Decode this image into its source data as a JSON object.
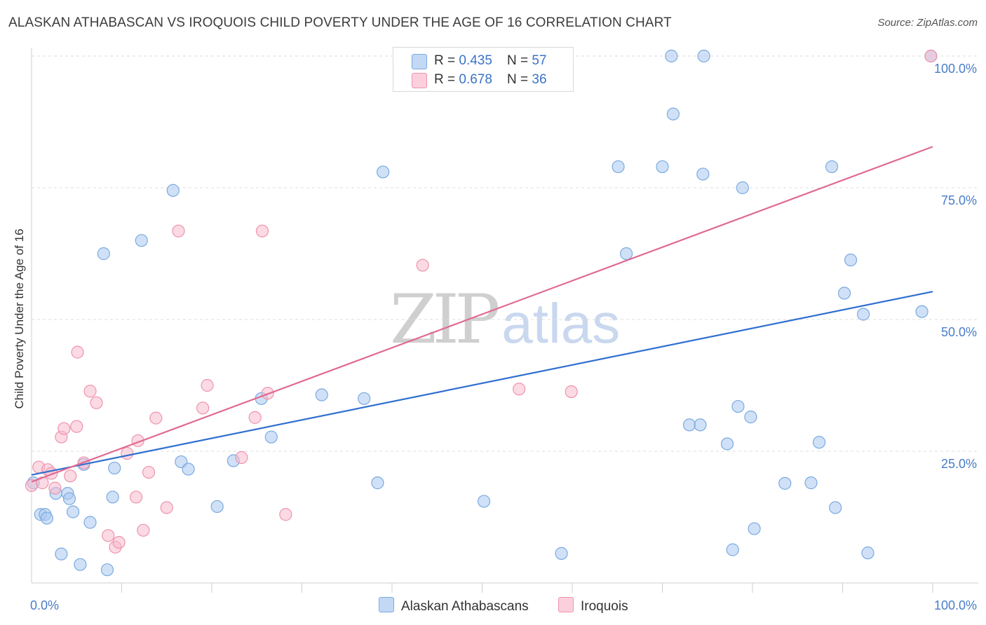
{
  "title": "ALASKAN ATHABASCAN VS IROQUOIS CHILD POVERTY UNDER THE AGE OF 16 CORRELATION CHART",
  "source": "Source: ZipAtlas.com",
  "watermark": {
    "zip": "ZIP",
    "atlas": "atlas"
  },
  "legend_top": {
    "rows": [
      {
        "r_label": "R = ",
        "r_value": "0.435",
        "n_label": "N = ",
        "n_value": "57",
        "color": "#aac8f0"
      },
      {
        "r_label": "R = ",
        "r_value": "0.678",
        "n_label": "N = ",
        "n_value": "36",
        "color": "#f7bccd"
      }
    ]
  },
  "legend_bottom": {
    "series": [
      {
        "name": "Alaskan Athabascans",
        "color": "#aac8f0"
      },
      {
        "name": "Iroquois",
        "color": "#f7bccd"
      }
    ]
  },
  "chart_data": {
    "type": "scatter",
    "title": "ALASKAN ATHABASCAN VS IROQUOIS CHILD POVERTY UNDER THE AGE OF 16 CORRELATION CHART",
    "xlabel": "",
    "ylabel": "Child Poverty Under the Age of 16",
    "xlim": [
      0,
      100
    ],
    "ylim": [
      0,
      100
    ],
    "x_tick_labels": [
      "0.0%",
      "100.0%"
    ],
    "y_ticks": [
      25,
      50,
      75,
      100
    ],
    "y_tick_labels": [
      "25.0%",
      "50.0%",
      "75.0%",
      "100.0%"
    ],
    "grid": true,
    "legend_placement": "top-center and bottom",
    "series": [
      {
        "name": "Alaskan Athabascans",
        "color": "#aac8f0",
        "edge": "#7aaae0",
        "line_color": "#2f6fd0",
        "R": 0.435,
        "N": 57,
        "trend": {
          "x": [
            0,
            100
          ],
          "y": [
            20.5,
            55.3
          ]
        },
        "points": [
          [
            0.2,
            19
          ],
          [
            1,
            13
          ],
          [
            1.5,
            13
          ],
          [
            1.7,
            12.3
          ],
          [
            2.7,
            17
          ],
          [
            3.3,
            5.5
          ],
          [
            4,
            17
          ],
          [
            4.2,
            16
          ],
          [
            4.6,
            13.5
          ],
          [
            5.4,
            3.5
          ],
          [
            5.8,
            22.5
          ],
          [
            6.5,
            11.5
          ],
          [
            8,
            62.5
          ],
          [
            8.4,
            2.5
          ],
          [
            9,
            16.3
          ],
          [
            9.2,
            21.8
          ],
          [
            12.2,
            65
          ],
          [
            15.7,
            74.5
          ],
          [
            16.6,
            23
          ],
          [
            17.4,
            21.6
          ],
          [
            20.6,
            14.5
          ],
          [
            22.4,
            23.2
          ],
          [
            25.5,
            35
          ],
          [
            26.6,
            27.7
          ],
          [
            32.2,
            35.7
          ],
          [
            36.9,
            35
          ],
          [
            38.4,
            19
          ],
          [
            39,
            78
          ],
          [
            50.2,
            15.5
          ],
          [
            58.8,
            5.6
          ],
          [
            65.1,
            79
          ],
          [
            66,
            62.5
          ],
          [
            70,
            79
          ],
          [
            71,
            100
          ],
          [
            71.2,
            89
          ],
          [
            73,
            30
          ],
          [
            74.2,
            30
          ],
          [
            74.5,
            77.6
          ],
          [
            74.6,
            100
          ],
          [
            77.2,
            26.4
          ],
          [
            77.8,
            6.3
          ],
          [
            78.4,
            33.5
          ],
          [
            78.9,
            75
          ],
          [
            79.8,
            31.5
          ],
          [
            80.2,
            10.3
          ],
          [
            83.6,
            18.9
          ],
          [
            86.5,
            19
          ],
          [
            87.4,
            26.7
          ],
          [
            88.8,
            79
          ],
          [
            89.2,
            14.3
          ],
          [
            90.2,
            55
          ],
          [
            90.9,
            61.3
          ],
          [
            92.3,
            51
          ],
          [
            92.8,
            5.7
          ],
          [
            98.8,
            51.5
          ],
          [
            99.8,
            100
          ]
        ]
      },
      {
        "name": "Iroquois",
        "color": "#f7bccd",
        "edge": "#ee93ad",
        "line_color": "#e06a92",
        "R": 0.678,
        "N": 36,
        "trend": {
          "x": [
            0,
            100
          ],
          "y": [
            19.2,
            82.8
          ]
        },
        "points": [
          [
            0,
            18.5
          ],
          [
            0.8,
            22
          ],
          [
            1.2,
            19
          ],
          [
            1.8,
            21.5
          ],
          [
            2.2,
            20.8
          ],
          [
            2.6,
            18
          ],
          [
            3.3,
            27.7
          ],
          [
            3.6,
            29.3
          ],
          [
            4.3,
            20.3
          ],
          [
            5,
            29.7
          ],
          [
            5.1,
            43.8
          ],
          [
            5.8,
            22.8
          ],
          [
            6.5,
            36.4
          ],
          [
            7.2,
            34.2
          ],
          [
            8.5,
            9
          ],
          [
            9.3,
            6.8
          ],
          [
            9.7,
            7.7
          ],
          [
            10.6,
            24.6
          ],
          [
            11.6,
            16.3
          ],
          [
            11.8,
            27
          ],
          [
            12.4,
            10
          ],
          [
            13,
            21
          ],
          [
            13.8,
            31.3
          ],
          [
            15,
            14.3
          ],
          [
            16.3,
            66.8
          ],
          [
            19,
            33.2
          ],
          [
            19.5,
            37.5
          ],
          [
            23.3,
            23.8
          ],
          [
            24.8,
            31.4
          ],
          [
            25.6,
            66.8
          ],
          [
            26.2,
            36
          ],
          [
            28.2,
            13
          ],
          [
            43.4,
            60.3
          ],
          [
            54.1,
            36.8
          ],
          [
            59.9,
            36.3
          ],
          [
            99.8,
            100
          ]
        ]
      }
    ]
  }
}
